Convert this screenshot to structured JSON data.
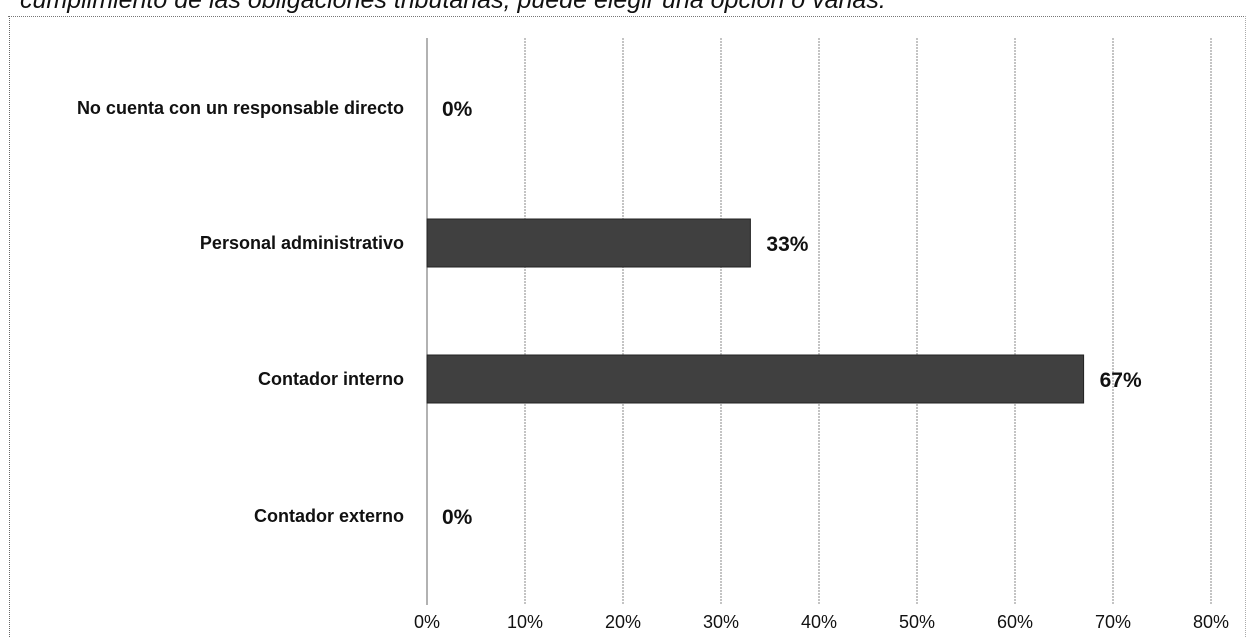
{
  "caption": "cumplimiento de las obligaciones tributarias, puede elegir una opción o varias.",
  "chart_data": {
    "type": "bar",
    "orientation": "horizontal",
    "categories": [
      "No cuenta con un responsable directo",
      "Personal administrativo",
      "Contador interno",
      "Contador externo"
    ],
    "values": [
      0,
      33,
      67,
      0
    ],
    "data_labels": [
      "0%",
      "33%",
      "67%",
      "0%"
    ],
    "xlim": [
      0,
      80
    ],
    "xticks": [
      0,
      10,
      20,
      30,
      40,
      50,
      60,
      70,
      80
    ],
    "xtick_labels": [
      "0%",
      "10%",
      "20%",
      "30%",
      "40%",
      "50%",
      "60%",
      "70%",
      "80%"
    ],
    "grid": "vertical",
    "bar_color": "#404040",
    "xlabel": "",
    "ylabel": ""
  }
}
